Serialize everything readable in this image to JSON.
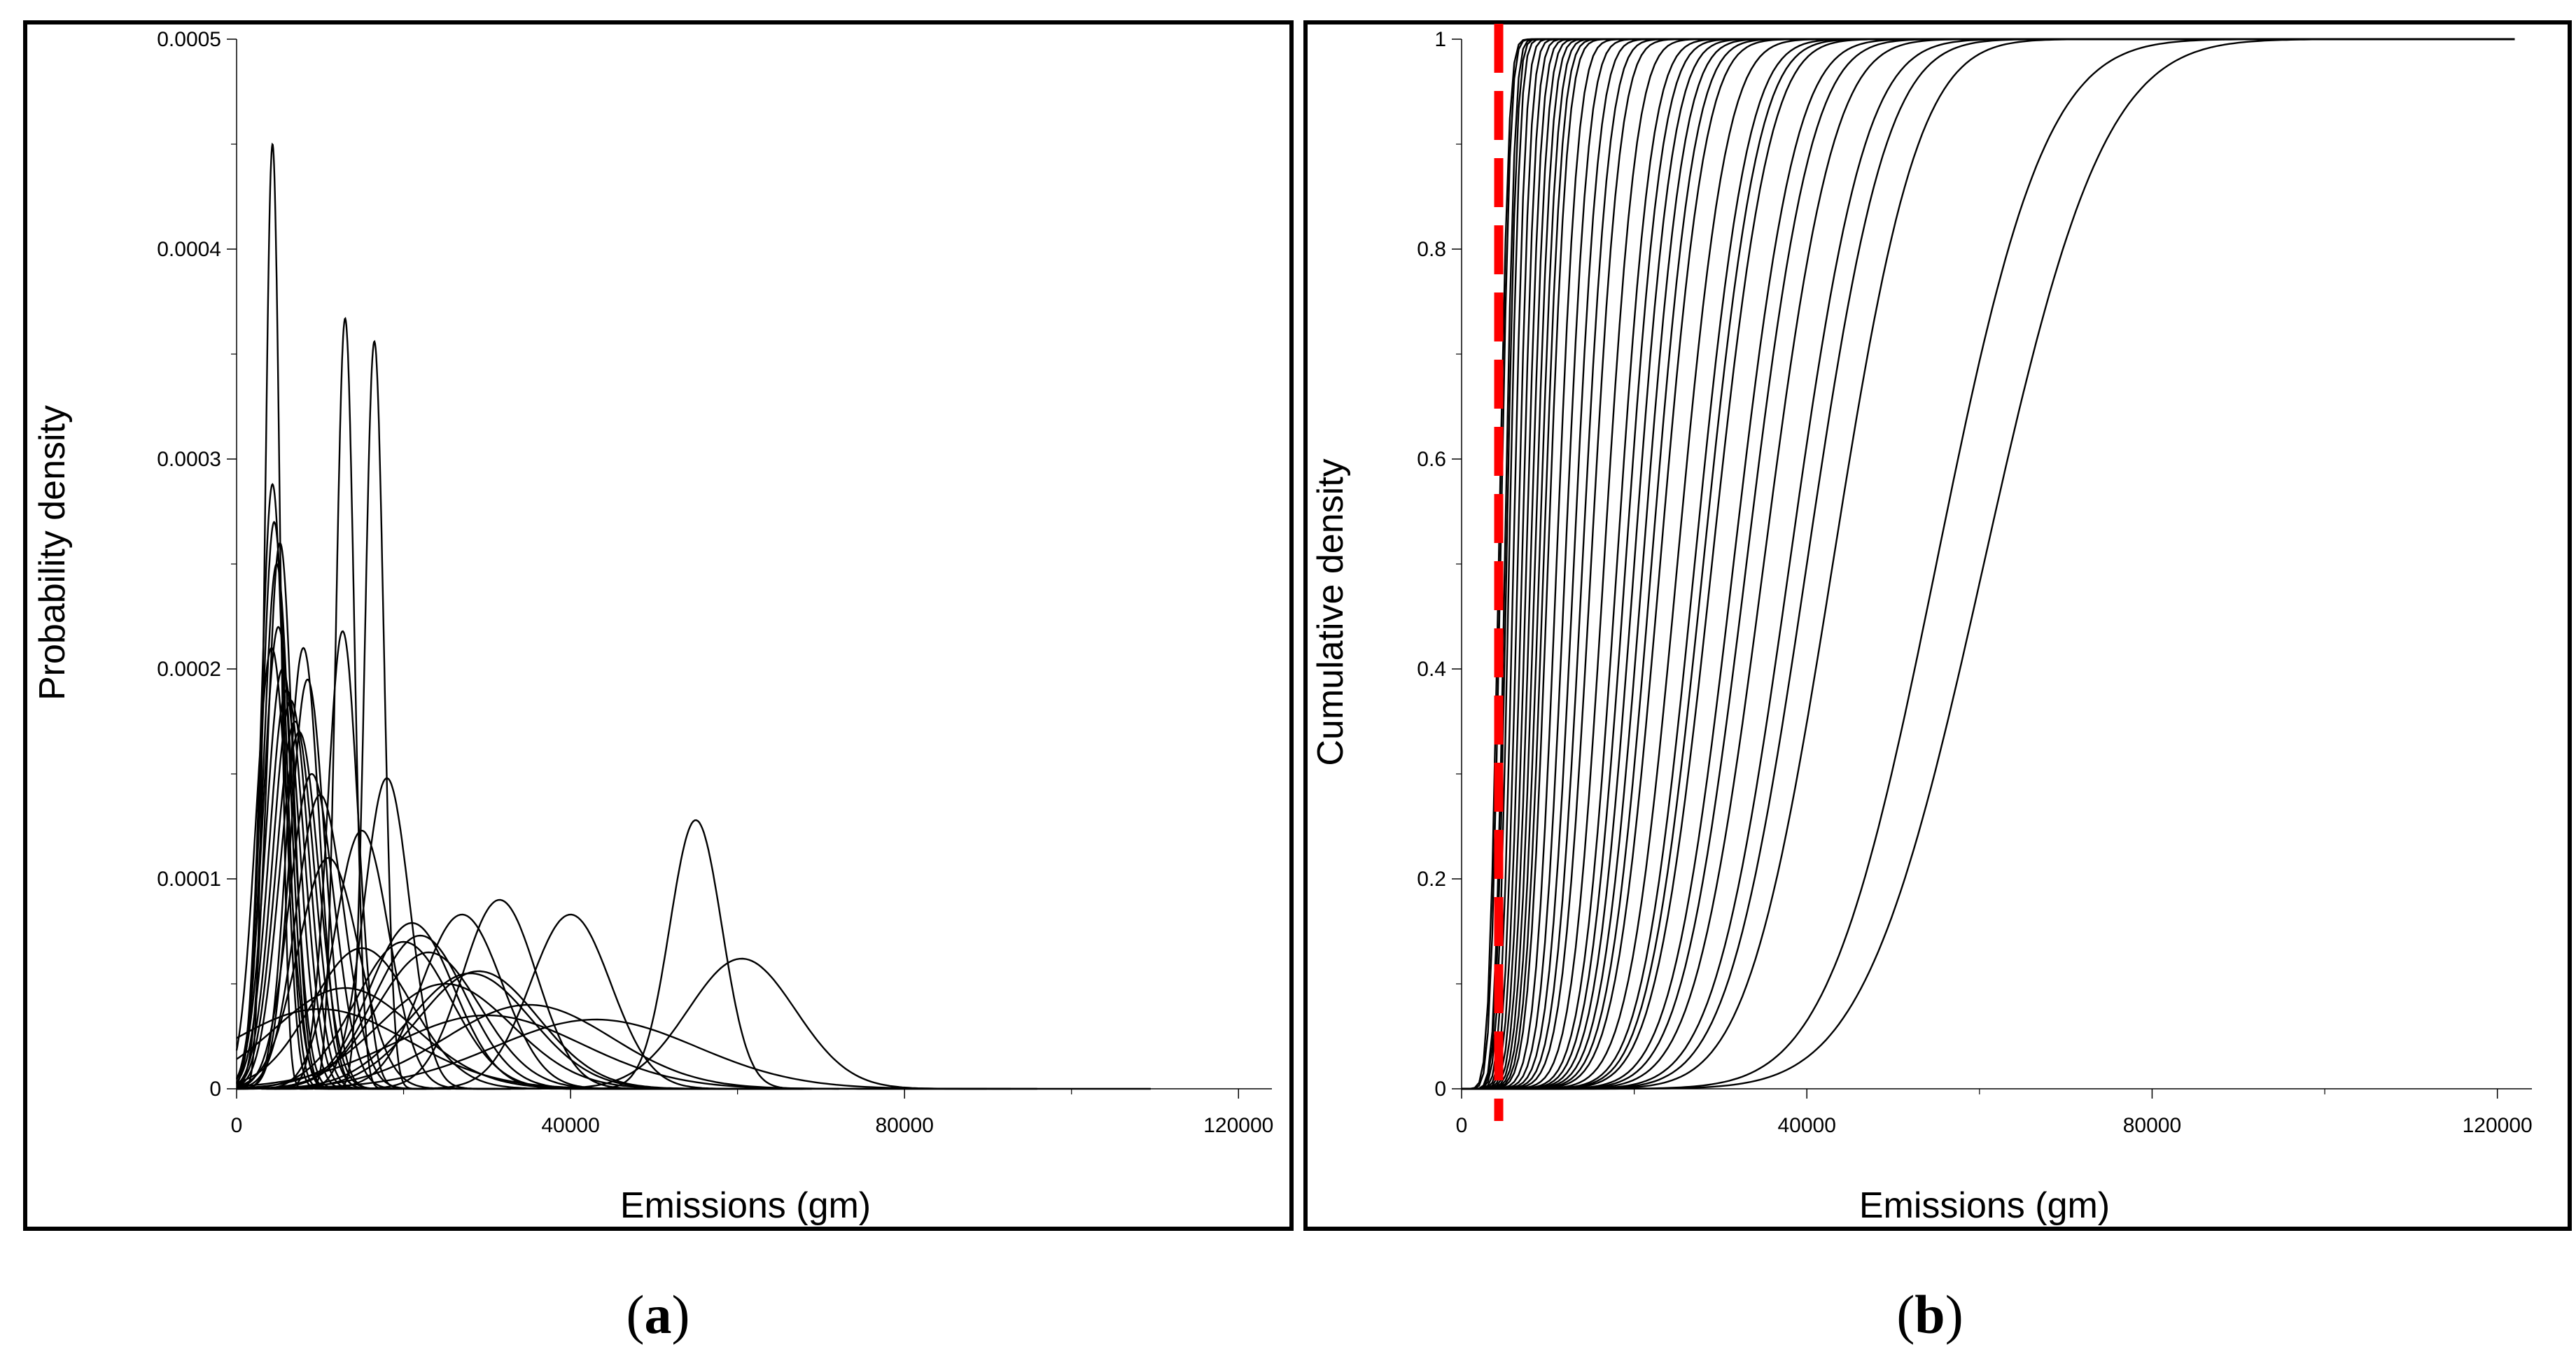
{
  "chart_data": [
    {
      "type": "line",
      "panel_label": "a",
      "xlabel": "Emissions (gm)",
      "ylabel": "Probability density",
      "xlim": [
        0,
        124000
      ],
      "ylim": [
        0,
        0.0005
      ],
      "xticks": [
        0,
        40000,
        80000,
        120000
      ],
      "xtick_labels": [
        "0",
        "40000",
        "80000",
        "120000"
      ],
      "yticks": [
        0,
        0.0001,
        0.0002,
        0.0003,
        0.0004,
        0.0005
      ],
      "ytick_labels": [
        "0",
        "0.0001",
        "0.0002",
        "0.0003",
        "0.0004",
        "0.0005"
      ],
      "series_kind": "normal_pdf",
      "series": [
        {
          "mean": 4300,
          "peak": 0.00045
        },
        {
          "mean": 4300,
          "peak": 0.000288
        },
        {
          "mean": 4500,
          "peak": 0.00027
        },
        {
          "mean": 5200,
          "peak": 0.00026
        },
        {
          "mean": 4800,
          "peak": 0.00025
        },
        {
          "mean": 5000,
          "peak": 0.00022
        },
        {
          "mean": 4200,
          "peak": 0.00021
        },
        {
          "mean": 5500,
          "peak": 0.0002
        },
        {
          "mean": 6000,
          "peak": 0.00019
        },
        {
          "mean": 6500,
          "peak": 0.000185
        },
        {
          "mean": 7000,
          "peak": 0.000175
        },
        {
          "mean": 7500,
          "peak": 0.00017
        },
        {
          "mean": 8000,
          "peak": 0.00021
        },
        {
          "mean": 8500,
          "peak": 0.000195
        },
        {
          "mean": 9000,
          "peak": 0.00015
        },
        {
          "mean": 10000,
          "peak": 0.00014
        },
        {
          "mean": 11000,
          "peak": 0.00011
        },
        {
          "mean": 13000,
          "peak": 0.000367
        },
        {
          "mean": 12700,
          "peak": 0.000218
        },
        {
          "mean": 16500,
          "peak": 0.000356
        },
        {
          "mean": 18000,
          "peak": 0.000148
        },
        {
          "mean": 15000,
          "peak": 0.000123
        },
        {
          "mean": 20000,
          "peak": 7e-05
        },
        {
          "mean": 21000,
          "peak": 7.9e-05
        },
        {
          "mean": 23000,
          "peak": 6.5e-05
        },
        {
          "mean": 25000,
          "peak": 5e-05
        },
        {
          "mean": 27000,
          "peak": 8.3e-05
        },
        {
          "mean": 28000,
          "peak": 5.5e-05
        },
        {
          "mean": 29000,
          "peak": 5.6e-05
        },
        {
          "mean": 31500,
          "peak": 9e-05
        },
        {
          "mean": 35000,
          "peak": 4e-05
        },
        {
          "mean": 40000,
          "peak": 8.3e-05
        },
        {
          "mean": 43000,
          "peak": 3.3e-05
        },
        {
          "mean": 55000,
          "peak": 0.000128
        },
        {
          "mean": 60500,
          "peak": 6.2e-05
        },
        {
          "mean": 15000,
          "peak": 6.7e-05
        },
        {
          "mean": 22000,
          "peak": 7.3e-05
        },
        {
          "mean": 13000,
          "peak": 4.8e-05
        },
        {
          "mean": 10000,
          "peak": 3.8e-05
        },
        {
          "mean": 30000,
          "peak": 3.5e-05
        }
      ]
    },
    {
      "type": "line",
      "panel_label": "b",
      "xlabel": "Emissions (gm)",
      "ylabel": "Cumulative density",
      "xlim": [
        0,
        124000
      ],
      "ylim": [
        0,
        1
      ],
      "xticks": [
        0,
        40000,
        80000,
        120000
      ],
      "xtick_labels": [
        "0",
        "40000",
        "80000",
        "120000"
      ],
      "yticks": [
        0,
        0.2,
        0.4,
        0.6,
        0.8,
        1
      ],
      "ytick_labels": [
        "0",
        "0.2",
        "0.4",
        "0.6",
        "0.8",
        "1"
      ],
      "series_kind": "normal_cdf",
      "reference_line": {
        "x": 4300,
        "color": "#ff0000",
        "style": "dashed"
      },
      "series": [
        {
          "mean": 4300
        },
        {
          "mean": 4500
        },
        {
          "mean": 5000
        },
        {
          "mean": 5200
        },
        {
          "mean": 5500
        },
        {
          "mean": 6000
        },
        {
          "mean": 6500
        },
        {
          "mean": 7000
        },
        {
          "mean": 7500
        },
        {
          "mean": 8000
        },
        {
          "mean": 8500
        },
        {
          "mean": 9000
        },
        {
          "mean": 9500
        },
        {
          "mean": 10000
        },
        {
          "mean": 11000
        },
        {
          "mean": 12000
        },
        {
          "mean": 13000
        },
        {
          "mean": 14000
        },
        {
          "mean": 15000
        },
        {
          "mean": 16500
        },
        {
          "mean": 18000
        },
        {
          "mean": 19000
        },
        {
          "mean": 20000
        },
        {
          "mean": 21000
        },
        {
          "mean": 22000
        },
        {
          "mean": 23000
        },
        {
          "mean": 25000
        },
        {
          "mean": 27000
        },
        {
          "mean": 28000
        },
        {
          "mean": 29000
        },
        {
          "mean": 31500
        },
        {
          "mean": 33000
        },
        {
          "mean": 35000
        },
        {
          "mean": 38000
        },
        {
          "mean": 40000
        },
        {
          "mean": 43000
        },
        {
          "mean": 55000
        },
        {
          "mean": 60500
        }
      ]
    }
  ],
  "captions": {
    "a": "a",
    "b": "b"
  }
}
